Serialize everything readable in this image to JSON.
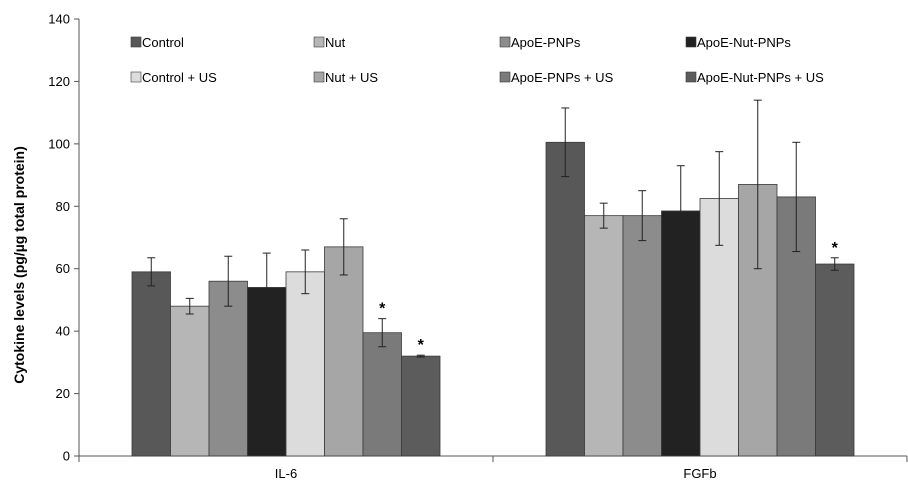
{
  "chart_data": {
    "type": "bar",
    "title": "",
    "xlabel": "",
    "ylabel": "Cytokine levels (pg/µg total protein)",
    "ylim": [
      0,
      140
    ],
    "yticks": [
      0,
      20,
      40,
      60,
      80,
      100,
      120,
      140
    ],
    "categories": [
      "IL-6",
      "FGFb"
    ],
    "legend_position": "top",
    "grid": false,
    "series": [
      {
        "name": "Control",
        "color": "#585858",
        "values": [
          59,
          100.5
        ],
        "errors": [
          4.5,
          11
        ]
      },
      {
        "name": "Nut",
        "color": "#b6b6b6",
        "values": [
          48,
          77
        ],
        "errors": [
          2.5,
          4
        ]
      },
      {
        "name": "ApoE-PNPs",
        "color": "#8c8c8c",
        "values": [
          56,
          77
        ],
        "errors": [
          8,
          8
        ]
      },
      {
        "name": "ApoE-Nut-PNPs",
        "color": "#222222",
        "values": [
          54,
          78.5
        ],
        "errors": [
          11,
          14.5
        ]
      },
      {
        "name": "Control + US",
        "color": "#dcdcdc",
        "values": [
          59,
          82.5
        ],
        "errors": [
          7,
          15
        ]
      },
      {
        "name": "Nut + US",
        "color": "#a6a6a6",
        "values": [
          67,
          87
        ],
        "errors": [
          9,
          27
        ]
      },
      {
        "name": "ApoE-PNPs + US",
        "color": "#7a7a7a",
        "values": [
          39.5,
          83
        ],
        "errors": [
          4.5,
          17.5
        ]
      },
      {
        "name": "ApoE-Nut-PNPs + US",
        "color": "#5c5c5c",
        "values": [
          32,
          61.5
        ],
        "errors": [
          0.3,
          2
        ]
      }
    ],
    "annotations": [
      {
        "text": "*",
        "series": "ApoE-PNPs + US",
        "category": "IL-6"
      },
      {
        "text": "*",
        "series": "ApoE-Nut-PNPs + US",
        "category": "IL-6"
      },
      {
        "text": "*",
        "series": "ApoE-Nut-PNPs + US",
        "category": "FGFb"
      }
    ]
  }
}
